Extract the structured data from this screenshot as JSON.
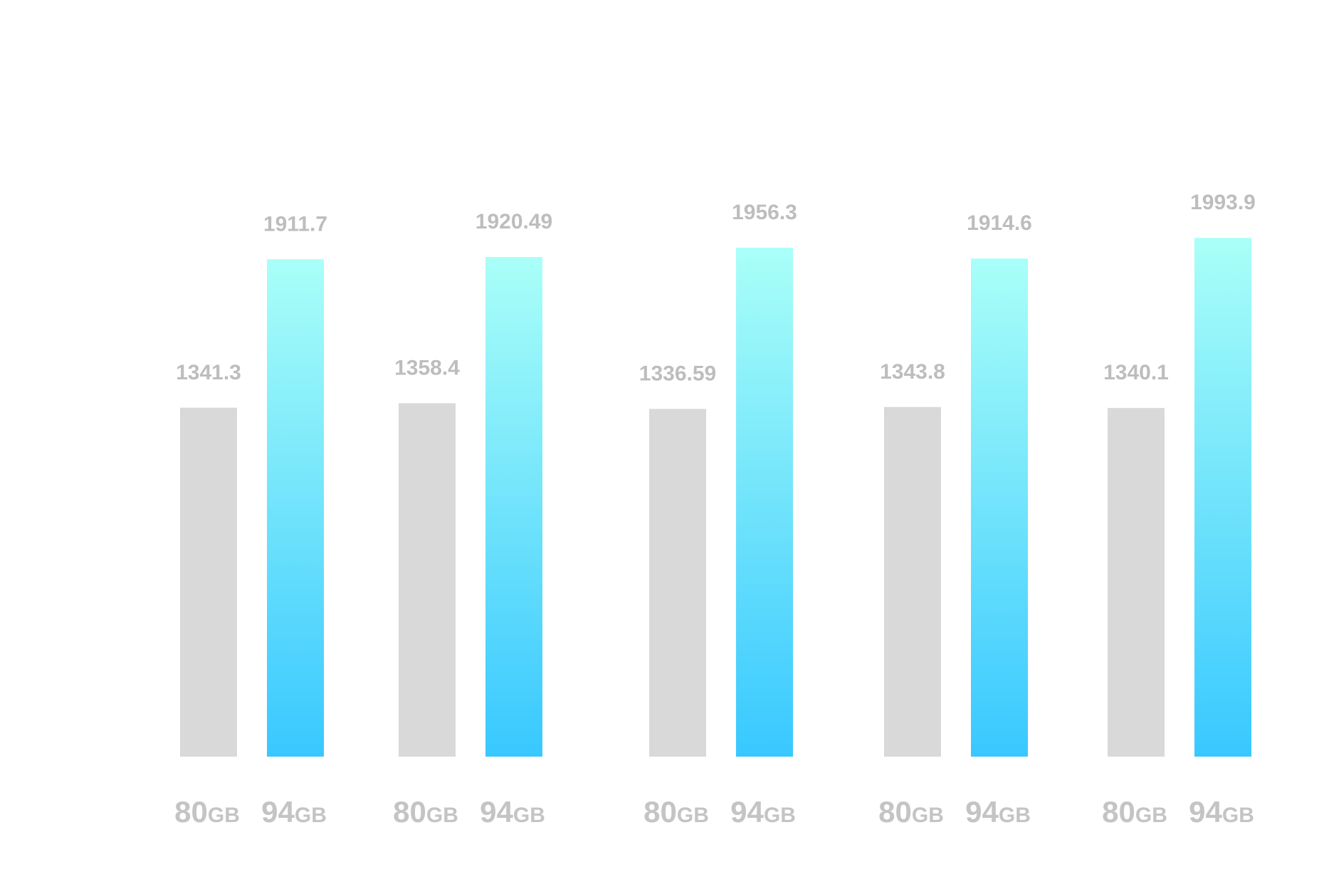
{
  "chart_data": {
    "type": "bar",
    "groups": [
      {
        "bars": [
          {
            "capacity": "80",
            "unit": "GB",
            "value": 1341.3,
            "label": "1341.3"
          },
          {
            "capacity": "94",
            "unit": "GB",
            "value": 1911.7,
            "label": "1911.7"
          }
        ]
      },
      {
        "bars": [
          {
            "capacity": "80",
            "unit": "GB",
            "value": 1358.4,
            "label": "1358.4"
          },
          {
            "capacity": "94",
            "unit": "GB",
            "value": 1920.49,
            "label": "1920.49"
          }
        ]
      },
      {
        "bars": [
          {
            "capacity": "80",
            "unit": "GB",
            "value": 1336.59,
            "label": "1336.59"
          },
          {
            "capacity": "94",
            "unit": "GB",
            "value": 1956.3,
            "label": "1956.3"
          }
        ]
      },
      {
        "bars": [
          {
            "capacity": "80",
            "unit": "GB",
            "value": 1343.8,
            "label": "1343.8"
          },
          {
            "capacity": "94",
            "unit": "GB",
            "value": 1914.6,
            "label": "1914.6"
          }
        ]
      },
      {
        "bars": [
          {
            "capacity": "80",
            "unit": "GB",
            "value": 1340.1,
            "label": "1340.1"
          },
          {
            "capacity": "94",
            "unit": "GB",
            "value": 1993.9,
            "label": "1993.9"
          }
        ]
      }
    ],
    "series": [
      {
        "values": [
          1341.3,
          1358.4,
          1336.59,
          1343.8,
          1340.1
        ],
        "color": "#d9d9d9"
      },
      {
        "values": [
          1911.7,
          1920.49,
          1956.3,
          1914.6,
          1993.9
        ],
        "color_top": "#aafff8",
        "color_bottom": "#38c8ff"
      }
    ],
    "ylim": [
      0,
      2000
    ],
    "grid": false,
    "legend": "none",
    "colors": {
      "bar_80": "#d9d9d9",
      "bar_94_top": "#aafff8",
      "bar_94_bottom": "#38c8ff",
      "label_text": "#bdbdbd",
      "category_text": "#c4c4c4"
    }
  }
}
